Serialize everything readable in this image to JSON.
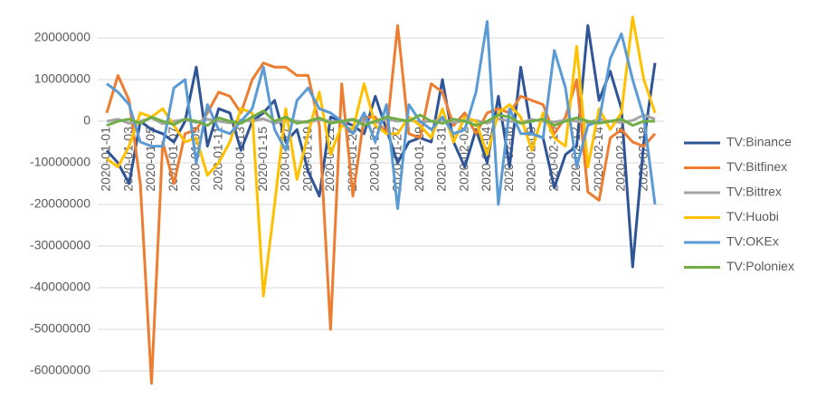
{
  "chart_data": {
    "type": "line",
    "categories": [
      "2020-01-01",
      null,
      "2020-01-03",
      null,
      "2020-01-05",
      null,
      "2020-01-07",
      null,
      "2020-01-09",
      null,
      "2020-01-11",
      null,
      "2020-01-13",
      null,
      "2020-01-15",
      null,
      "2020-01-17",
      null,
      "2020-01-19",
      null,
      "2020-01-21",
      null,
      "2020-01-23",
      null,
      "2020-01-25",
      null,
      "2020-01-27",
      null,
      "2020-01-29",
      null,
      "2020-01-31",
      null,
      "2020-02-02",
      null,
      "2020-02-04",
      null,
      "2020-02-06",
      null,
      "2020-02-08",
      null,
      "2020-02-10",
      null,
      "2020-02-12",
      null,
      "2020-02-14",
      null,
      "2020-02-16",
      null,
      "2020-02-18",
      null
    ],
    "series": [
      {
        "name": "TV:Binance",
        "color": "#2f5597",
        "values": [
          -7000000,
          -10000000,
          -15000000,
          0,
          -2000000,
          -3000000,
          -5000000,
          0,
          13000000,
          -6000000,
          3000000,
          2000000,
          -7000000,
          0,
          2000000,
          5000000,
          -5000000,
          -2000000,
          -12000000,
          -18000000,
          1000000,
          0,
          -1000000,
          -3000000,
          6000000,
          -2000000,
          -10000000,
          -5000000,
          -4000000,
          -5000000,
          10000000,
          -5000000,
          -11000000,
          -2000000,
          -10000000,
          6000000,
          -11000000,
          13000000,
          -3000000,
          -4000000,
          -16000000,
          -8000000,
          -6000000,
          23000000,
          5000000,
          12000000,
          3000000,
          -35000000,
          -5000000,
          14000000
        ]
      },
      {
        "name": "TV:Bitfinex",
        "color": "#ed7d31",
        "values": [
          2000000,
          11000000,
          5000000,
          -15000000,
          -63000000,
          -5000000,
          -15000000,
          -3000000,
          -2000000,
          2000000,
          7000000,
          6000000,
          2000000,
          10000000,
          14000000,
          13000000,
          13000000,
          11000000,
          11000000,
          -1000000,
          -50000000,
          9000000,
          -18000000,
          1000000,
          1000000,
          -3000000,
          23000000,
          -3000000,
          -4000000,
          9000000,
          7000000,
          -1000000,
          2000000,
          -3000000,
          2000000,
          3000000,
          2000000,
          6000000,
          5000000,
          4000000,
          -3000000,
          1000000,
          10000000,
          -17000000,
          -19000000,
          -4000000,
          -2000000,
          -5000000,
          -6000000,
          -3000000
        ]
      },
      {
        "name": "TV:Bittrex",
        "color": "#a5a5a5",
        "values": [
          0,
          500000,
          -500000,
          0,
          800000,
          -600000,
          0,
          400000,
          -300000,
          500000,
          0,
          -400000,
          300000,
          0,
          600000,
          -500000,
          200000,
          0,
          -300000,
          400000,
          0,
          -200000,
          300000,
          0,
          -400000,
          500000,
          0,
          300000,
          -200000,
          0,
          400000,
          -300000,
          0,
          200000,
          -500000,
          600000,
          0,
          -300000,
          400000,
          0,
          -200000,
          300000,
          0,
          -400000,
          500000,
          0,
          -300000,
          200000,
          1500000,
          500000
        ]
      },
      {
        "name": "TV:Huobi",
        "color": "#ffc000",
        "values": [
          -9000000,
          -11000000,
          -6000000,
          2000000,
          1000000,
          3000000,
          -1000000,
          -5000000,
          -4000000,
          -13000000,
          -10000000,
          -5000000,
          3000000,
          2000000,
          -42000000,
          -20000000,
          3000000,
          -14000000,
          -3000000,
          7000000,
          -8000000,
          -1000000,
          -2000000,
          9000000,
          -1000000,
          -3000000,
          -3000000,
          1000000,
          -1000000,
          -4000000,
          3000000,
          -5000000,
          1000000,
          0,
          -8000000,
          2000000,
          4000000,
          1000000,
          -7000000,
          2000000,
          -4000000,
          -6000000,
          18000000,
          -11000000,
          3000000,
          -2000000,
          2000000,
          25000000,
          10000000,
          2000000
        ]
      },
      {
        "name": "TV:OKEx",
        "color": "#5b9bd5",
        "values": [
          9000000,
          7000000,
          4000000,
          -5000000,
          -6000000,
          -6000000,
          8000000,
          10000000,
          -10000000,
          4000000,
          -2000000,
          -3000000,
          0,
          3000000,
          13000000,
          -2000000,
          -7000000,
          5000000,
          8000000,
          3000000,
          2000000,
          0,
          -3000000,
          2000000,
          -5000000,
          4000000,
          -21000000,
          4000000,
          0,
          -2000000,
          1000000,
          -3000000,
          -2000000,
          7000000,
          24000000,
          -20000000,
          3000000,
          -3000000,
          -3000000,
          -4000000,
          17000000,
          8000000,
          -11000000,
          -1000000,
          0,
          15000000,
          21000000,
          10000000,
          1000000,
          -20000000
        ]
      },
      {
        "name": "TV:Poloniex",
        "color": "#70ad47",
        "values": [
          -1000000,
          0,
          500000,
          -500000,
          1000000,
          0,
          -800000,
          500000,
          0,
          -1000000,
          800000,
          0,
          -500000,
          1000000,
          2500000,
          0,
          1000000,
          -500000,
          0,
          800000,
          -500000,
          0,
          500000,
          -1000000,
          0,
          1000000,
          500000,
          0,
          1500000,
          0,
          -500000,
          500000,
          0,
          -1000000,
          0,
          1500000,
          1000000,
          -500000,
          0,
          500000,
          -1000000,
          0,
          800000,
          0,
          -500000,
          0,
          500000,
          -1000000,
          0,
          0
        ]
      }
    ],
    "ylim": [
      -65000000,
      25000000
    ],
    "yticks": [
      -60000000,
      -50000000,
      -40000000,
      -30000000,
      -20000000,
      -10000000,
      0,
      10000000,
      20000000
    ],
    "grid": true
  }
}
